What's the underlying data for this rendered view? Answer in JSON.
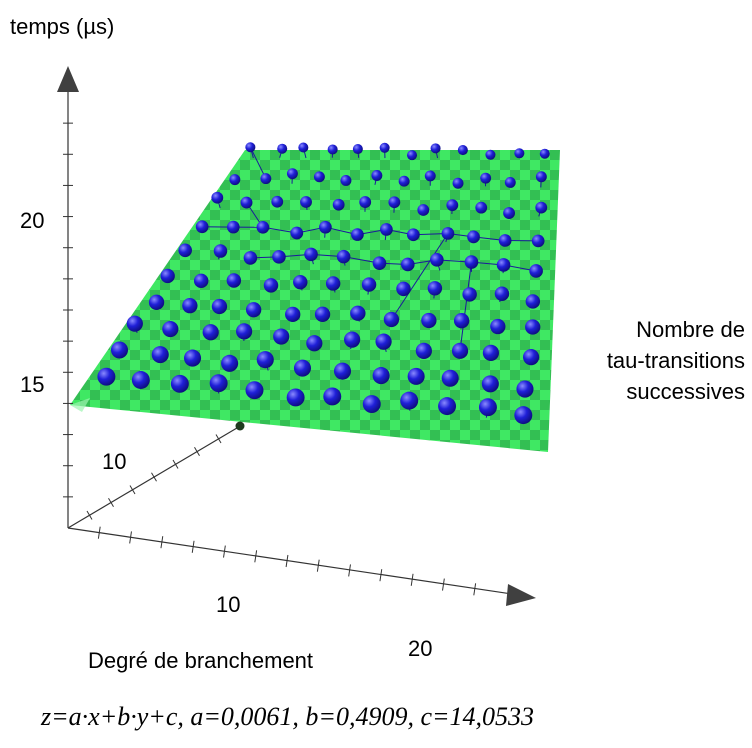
{
  "chart_data": {
    "type": "scatter",
    "title": "",
    "zlabel": "temps (µs)",
    "xlabel": "Degré de branchement",
    "ylabel": "Nombre de tau-transitions successives",
    "ylabel_lines": [
      "Nombre de",
      "tau-transitions",
      "successives"
    ],
    "z_ticks": [
      "15",
      "20"
    ],
    "x_ticks": [
      "10",
      "20"
    ],
    "y_ticks": [
      "10"
    ],
    "fit": {
      "equation": "z=a·x+b·y+c, a=0,0061, b=0,4909, c=14,0533",
      "a": 0.0061,
      "b": 0.4909,
      "c": 14.0533
    },
    "grid_rows": 10,
    "grid_cols": 12,
    "colors": {
      "plane_light": "#3fe863",
      "plane_dark": "#2a9c45",
      "point": "#1f1fd8",
      "point_dark": "#0b0b72",
      "stem": "#1a1a9a",
      "axis": "#333333",
      "arrow": "#404040"
    }
  }
}
